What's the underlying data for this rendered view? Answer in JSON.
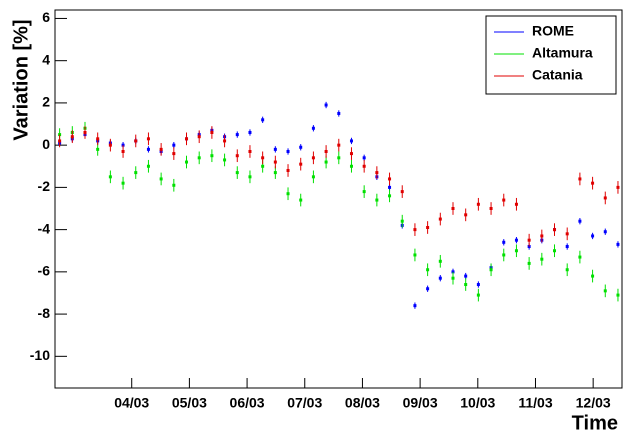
{
  "chart_data": {
    "type": "scatter",
    "x_label": "Time",
    "y_label": "Variation [%]",
    "x": [
      2.75,
      2.97,
      3.19,
      3.41,
      3.63,
      3.85,
      4.07,
      4.29,
      4.51,
      4.73,
      4.95,
      5.17,
      5.39,
      5.61,
      5.83,
      6.05,
      6.27,
      6.49,
      6.71,
      6.93,
      7.15,
      7.37,
      7.59,
      7.81,
      8.03,
      8.25,
      8.47,
      8.69,
      8.91,
      9.13,
      9.35,
      9.57,
      9.79,
      10.01,
      10.23,
      10.45,
      10.67,
      10.89,
      11.11,
      11.33,
      11.55,
      11.77,
      11.99,
      12.21,
      12.43
    ],
    "xlim": [
      2.67,
      12.5
    ],
    "xticks": [
      {
        "value": 4,
        "label": "04/03"
      },
      {
        "value": 5,
        "label": "05/03"
      },
      {
        "value": 6,
        "label": "06/03"
      },
      {
        "value": 7,
        "label": "07/03"
      },
      {
        "value": 8,
        "label": "08/03"
      },
      {
        "value": 9,
        "label": "09/03"
      },
      {
        "value": 10,
        "label": "10/03"
      },
      {
        "value": 11,
        "label": "11/03"
      },
      {
        "value": 12,
        "label": "12/03"
      }
    ],
    "ylim": [
      -11.5,
      6.4
    ],
    "yticks": [
      -10,
      -8,
      -6,
      -4,
      -2,
      0,
      2,
      4,
      6
    ],
    "legend": "top-right",
    "series": [
      {
        "name": "ROME",
        "color": "#0000ff",
        "error": 0.15,
        "values": [
          0.1,
          0.3,
          0.5,
          0.2,
          0.1,
          0.0,
          0.2,
          -0.2,
          -0.3,
          0.0,
          0.3,
          0.5,
          0.7,
          0.4,
          0.5,
          0.6,
          1.2,
          -0.2,
          -0.3,
          -0.1,
          0.8,
          1.9,
          1.5,
          0.2,
          -0.6,
          -1.5,
          -2.0,
          -3.8,
          -7.6,
          -6.8,
          -6.3,
          -6.0,
          -6.2,
          -6.6,
          -5.8,
          -4.6,
          -4.5,
          -4.8,
          -4.5,
          -4.0,
          -4.8,
          -3.6,
          -4.3,
          -4.1,
          -4.7
        ]
      },
      {
        "name": "Altamura",
        "color": "#00e000",
        "error": 0.3,
        "values": [
          0.5,
          0.6,
          0.8,
          -0.2,
          -1.5,
          -1.8,
          -1.3,
          -1.0,
          -1.6,
          -1.9,
          -0.8,
          -0.6,
          -0.5,
          -0.7,
          -1.3,
          -1.5,
          -1.0,
          -1.3,
          -2.3,
          -2.6,
          -1.5,
          -0.8,
          -0.6,
          -1.0,
          -2.2,
          -2.6,
          -2.4,
          -3.6,
          -5.2,
          -5.9,
          -5.5,
          -6.3,
          -6.6,
          -7.1,
          -5.9,
          -5.2,
          -5.0,
          -5.6,
          -5.4,
          -5.0,
          -5.9,
          -5.3,
          -6.2,
          -6.9,
          -7.1
        ]
      },
      {
        "name": "Catania",
        "color": "#e00000",
        "error": 0.3,
        "values": [
          0.2,
          0.4,
          0.6,
          0.3,
          0.0,
          -0.3,
          0.2,
          0.3,
          -0.2,
          -0.4,
          0.3,
          0.4,
          0.6,
          0.2,
          -0.5,
          -0.3,
          -0.6,
          -0.8,
          -1.2,
          -0.9,
          -0.6,
          -0.3,
          0.0,
          -0.4,
          -1.0,
          -1.3,
          -1.6,
          -2.2,
          -4.0,
          -3.9,
          -3.5,
          -3.0,
          -3.3,
          -2.8,
          -3.0,
          -2.6,
          -2.8,
          -4.5,
          -4.3,
          -4.0,
          -4.2,
          -1.6,
          -1.8,
          -2.5,
          -2.0
        ]
      }
    ]
  }
}
